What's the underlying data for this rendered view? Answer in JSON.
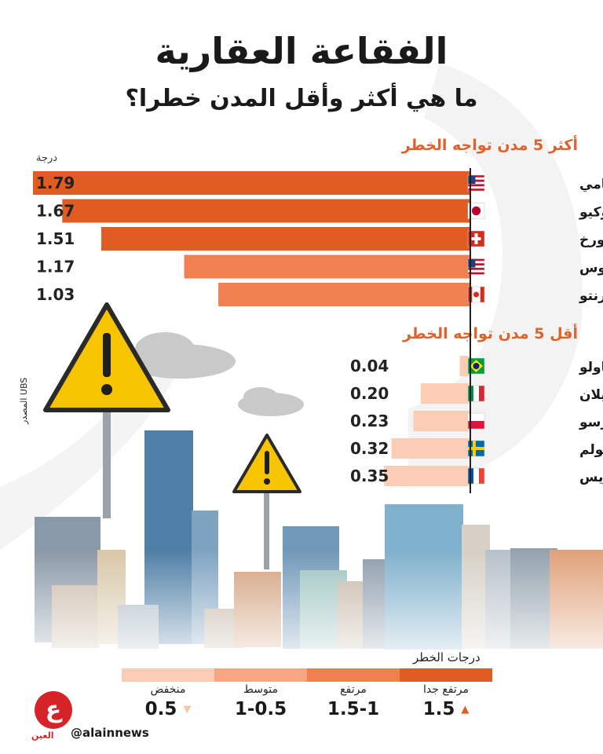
{
  "header": {
    "title": "الفقاعة العقارية",
    "subtitle": "ما هي أكثر وأقل المدن خطرا؟"
  },
  "chart_data": {
    "type": "bar",
    "orientation": "horizontal",
    "unit_label": "درجة",
    "top": {
      "title": "أكثر 5 مدن تواجه الخطر",
      "categories": [
        "ميامي",
        "طوكيو",
        "زيورخ",
        "لوس أنجلوس",
        "تورنتو"
      ],
      "values": [
        1.79,
        1.67,
        1.51,
        1.17,
        1.03
      ],
      "value_labels": [
        "1.79",
        "1.67",
        "1.51",
        "1.17",
        "1.03"
      ],
      "flags": [
        "us",
        "jp",
        "ch",
        "us",
        "ca"
      ]
    },
    "low": {
      "title": "أقل 5 مدن تواجه الخطر",
      "categories": [
        "ساو باولو",
        "ميلان",
        "وارسو",
        "ستوكهولم",
        "باريس"
      ],
      "values": [
        0.04,
        0.2,
        0.23,
        0.32,
        0.35
      ],
      "value_labels": [
        "0.04",
        "0.20",
        "0.23",
        "0.32",
        "0.35"
      ],
      "flags": [
        "br",
        "it",
        "pl",
        "se",
        "fr"
      ]
    },
    "xlim": [
      0,
      1.79
    ],
    "legend": {
      "title": "درجات الخطر",
      "items": [
        {
          "name": "مرتفع جدا",
          "range": "1.5",
          "arrow": "▲",
          "color": "#e05c23"
        },
        {
          "name": "مرتفع",
          "range": "1.5-1",
          "arrow": "",
          "color": "#f08050"
        },
        {
          "name": "متوسط",
          "range": "1-0.5",
          "arrow": "",
          "color": "#f6a680"
        },
        {
          "name": "منخفض",
          "range": "0.5",
          "arrow": "▼",
          "color": "#fbcdb4"
        }
      ]
    }
  },
  "source": "المصدر UBS",
  "footer": {
    "logo_letter": "ع",
    "logo_caption": "العين",
    "handle": "@alainnews"
  },
  "colors": {
    "very_high": "#e05c23",
    "high": "#f08050",
    "medium": "#f6a680",
    "low": "#fbcdb4",
    "accent": "#e0622a"
  }
}
